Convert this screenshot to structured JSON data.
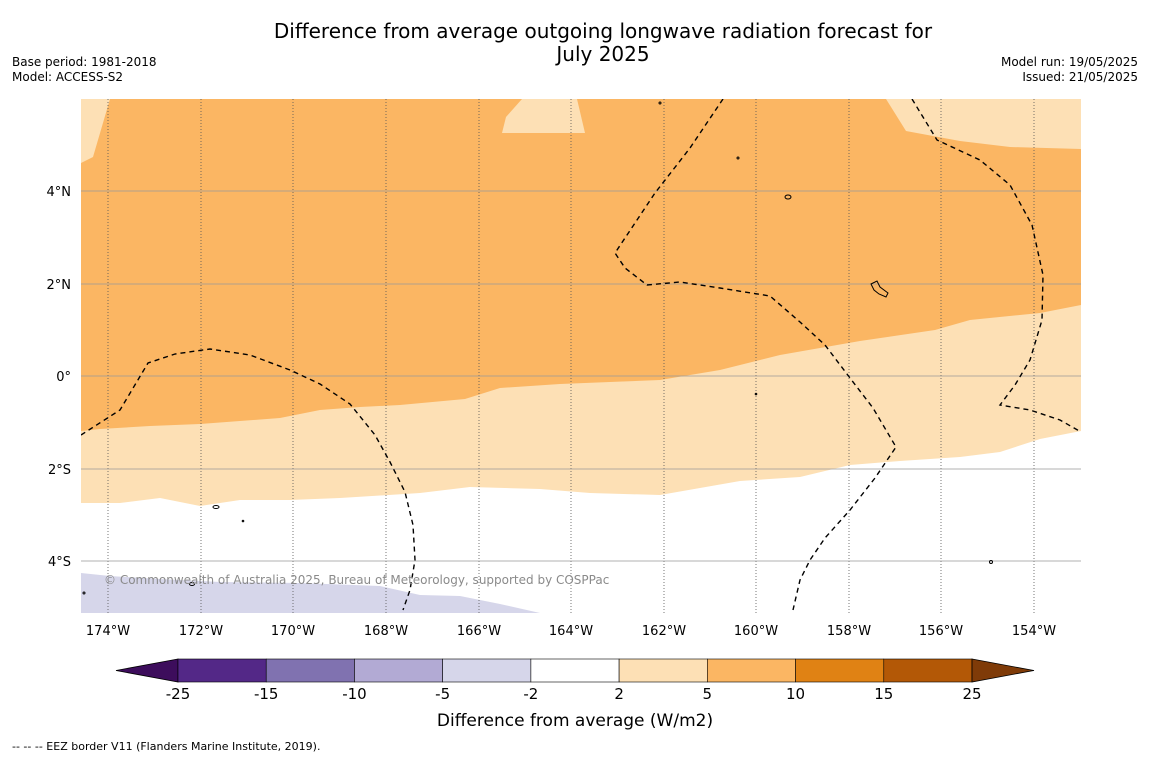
{
  "header": {
    "title_line1": "Difference from average outgoing longwave radiation forecast for",
    "title_line2": "July 2025",
    "base_period": "Base period: 1981-2018",
    "model": "Model: ACCESS-S2",
    "model_run": "Model run: 19/05/2025",
    "issued": "Issued: 21/05/2025"
  },
  "map": {
    "lon_labels": [
      "174°W",
      "172°W",
      "170°W",
      "168°W",
      "166°W",
      "164°W",
      "162°W",
      "160°W",
      "158°W",
      "156°W",
      "154°W"
    ],
    "lat_labels": [
      "4°N",
      "2°N",
      "0°",
      "2°S",
      "4°S"
    ],
    "credit": "© Commonwealth of Australia 2025, Bureau of Meteorology, supported by COSPPac",
    "colors": {
      "anomaly_5_10": "#fbb663",
      "anomaly_2_5": "#fde0b5",
      "anomaly_neg5_neg2": "#d6d6ea",
      "neutral": "#ffffff"
    }
  },
  "colorbar": {
    "ticks": [
      "-25",
      "-15",
      "-10",
      "-5",
      "-2",
      "2",
      "5",
      "10",
      "15",
      "25"
    ],
    "colors": [
      "#3d0d5c",
      "#532887",
      "#8072b0",
      "#b2aad4",
      "#d6d6ea",
      "#ffffff",
      "#fde0b5",
      "#fbb663",
      "#e08214",
      "#b35806",
      "#7f3b08"
    ],
    "label": "Difference from average (W/m2)"
  },
  "footnote": "--  --  -- EEZ border V11 (Flanders Marine Institute, 2019)."
}
